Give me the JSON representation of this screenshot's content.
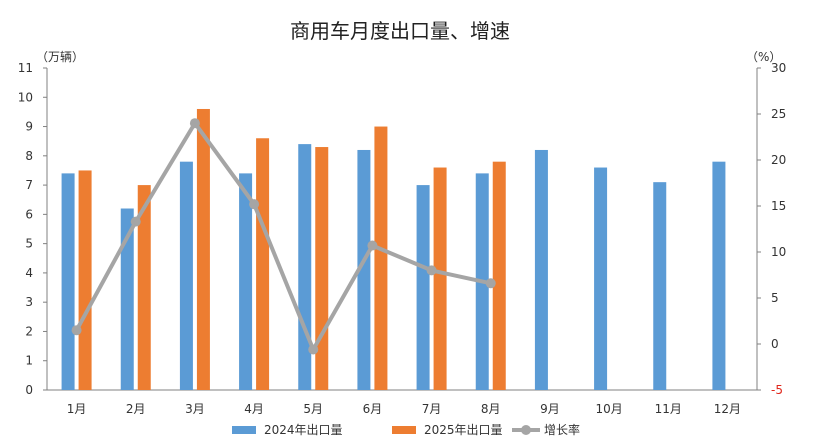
{
  "chart_data": {
    "type": "bar",
    "title": "商用车月度出口量、增速",
    "left_unit": "（万辆）",
    "right_unit": "（%）",
    "categories": [
      "1月",
      "2月",
      "3月",
      "4月",
      "5月",
      "6月",
      "7月",
      "8月",
      "9月",
      "10月",
      "11月",
      "12月"
    ],
    "series": [
      {
        "name": "2024年出口量",
        "type": "bar",
        "axis": "left",
        "color": "#5b9bd5",
        "values": [
          7.4,
          6.2,
          7.8,
          7.4,
          8.4,
          8.2,
          7.0,
          7.4,
          8.2,
          7.6,
          7.1,
          7.8
        ]
      },
      {
        "name": "2025年出口量",
        "type": "bar",
        "axis": "left",
        "color": "#ed7d31",
        "values": [
          7.5,
          7.0,
          9.6,
          8.6,
          8.3,
          9.0,
          7.6,
          7.8,
          null,
          null,
          null,
          null
        ]
      },
      {
        "name": "增长率",
        "type": "line",
        "axis": "right",
        "color": "#a5a5a5",
        "values": [
          1.5,
          13.3,
          24.0,
          15.2,
          -0.6,
          10.7,
          8.0,
          6.6,
          null,
          null,
          null,
          null
        ]
      }
    ],
    "left_axis": {
      "min": 0,
      "max": 11,
      "ticks": [
        0,
        1,
        2,
        3,
        4,
        5,
        6,
        7,
        8,
        9,
        10,
        11
      ]
    },
    "right_axis": {
      "min": -5,
      "max": 30,
      "ticks": [
        -5,
        0,
        5,
        10,
        15,
        20,
        25,
        30
      ]
    },
    "negative_tick_color": "#e0261b",
    "grid": false,
    "legend_position": "bottom"
  }
}
